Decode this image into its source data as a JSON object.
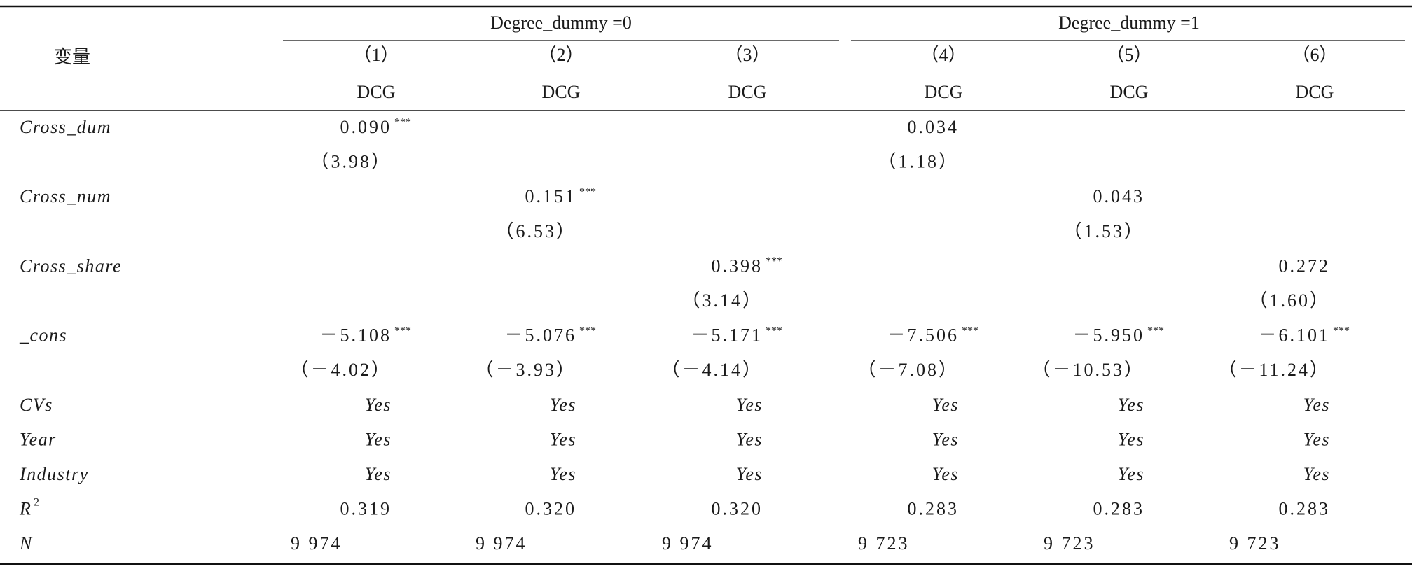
{
  "header": {
    "variable_label": "变量",
    "groups": [
      "Degree_dummy =0",
      "Degree_dummy =1"
    ],
    "columns": [
      "（1）",
      "（2）",
      "（3）",
      "（4）",
      "（5）",
      "（6）"
    ],
    "dependent": [
      "DCG",
      "DCG",
      "DCG",
      "DCG",
      "DCG",
      "DCG"
    ]
  },
  "table": {
    "rows": [
      {
        "label": "Cross_dum",
        "cells": [
          {
            "text": "0.090",
            "stars": "***"
          },
          null,
          null,
          {
            "text": "0.034"
          },
          null,
          null
        ]
      },
      {
        "label": null,
        "cells": [
          {
            "text": "（3.98）"
          },
          null,
          null,
          {
            "text": "（1.18）"
          },
          null,
          null
        ]
      },
      {
        "label": "Cross_num",
        "cells": [
          null,
          {
            "text": "0.151",
            "stars": "***"
          },
          null,
          null,
          {
            "text": "0.043"
          },
          null
        ]
      },
      {
        "label": null,
        "cells": [
          null,
          {
            "text": "（6.53）"
          },
          null,
          null,
          {
            "text": "（1.53）"
          },
          null
        ]
      },
      {
        "label": "Cross_share",
        "cells": [
          null,
          null,
          {
            "text": "0.398",
            "stars": "***"
          },
          null,
          null,
          {
            "text": "0.272"
          }
        ]
      },
      {
        "label": null,
        "cells": [
          null,
          null,
          {
            "text": "（3.14）"
          },
          null,
          null,
          {
            "text": "（1.60）"
          }
        ]
      },
      {
        "label": "_cons",
        "cells": [
          {
            "text": "－5.108",
            "stars": "***"
          },
          {
            "text": "－5.076",
            "stars": "***"
          },
          {
            "text": "－5.171",
            "stars": "***"
          },
          {
            "text": "－7.506",
            "stars": "***"
          },
          {
            "text": "－5.950",
            "stars": "***"
          },
          {
            "text": "－6.101",
            "stars": "***"
          }
        ]
      },
      {
        "label": null,
        "cells": [
          {
            "text": "（－4.02）"
          },
          {
            "text": "（－3.93）"
          },
          {
            "text": "（－4.14）"
          },
          {
            "text": "（－7.08）"
          },
          {
            "text": "（－10.53）"
          },
          {
            "text": "（－11.24）"
          }
        ]
      },
      {
        "label": "CVs",
        "cells": [
          {
            "text": "Yes"
          },
          {
            "text": "Yes"
          },
          {
            "text": "Yes"
          },
          {
            "text": "Yes"
          },
          {
            "text": "Yes"
          },
          {
            "text": "Yes"
          }
        ]
      },
      {
        "label": "Year",
        "cells": [
          {
            "text": "Yes"
          },
          {
            "text": "Yes"
          },
          {
            "text": "Yes"
          },
          {
            "text": "Yes"
          },
          {
            "text": "Yes"
          },
          {
            "text": "Yes"
          }
        ]
      },
      {
        "label": "Industry",
        "cells": [
          {
            "text": "Yes"
          },
          {
            "text": "Yes"
          },
          {
            "text": "Yes"
          },
          {
            "text": "Yes"
          },
          {
            "text": "Yes"
          },
          {
            "text": "Yes"
          }
        ]
      },
      {
        "label": "R",
        "label_sup": "2",
        "cells": [
          {
            "text": "0.319"
          },
          {
            "text": "0.320"
          },
          {
            "text": "0.320"
          },
          {
            "text": "0.283"
          },
          {
            "text": "0.283"
          },
          {
            "text": "0.283"
          }
        ]
      },
      {
        "label": "N",
        "cells": [
          {
            "text": "9 974"
          },
          {
            "text": "9 974"
          },
          {
            "text": "9 974"
          },
          {
            "text": "9 723"
          },
          {
            "text": "9 723"
          },
          {
            "text": "9 723"
          }
        ]
      }
    ]
  }
}
